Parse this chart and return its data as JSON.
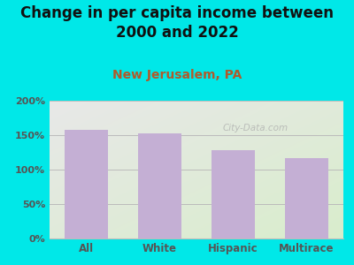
{
  "title": "Change in per capita income between\n2000 and 2022",
  "subtitle": "New Jerusalem, PA",
  "categories": [
    "All",
    "White",
    "Hispanic",
    "Multirace"
  ],
  "values": [
    158,
    152,
    128,
    117
  ],
  "bar_color": "#c4afd4",
  "title_fontsize": 12,
  "subtitle_fontsize": 10,
  "subtitle_color": "#b05a2a",
  "title_color": "#111111",
  "background_color": "#00e8e8",
  "plot_bg_topleft": "#e8e8e8",
  "plot_bg_bottomright": "#d8edcc",
  "ylim": [
    0,
    200
  ],
  "yticks": [
    0,
    50,
    100,
    150,
    200
  ],
  "ytick_labels": [
    "0%",
    "50%",
    "100%",
    "150%",
    "200%"
  ],
  "watermark": "City-Data.com",
  "tick_color": "#555555",
  "grid_color": "#bbbbbb",
  "watermark_color": "#aaaaaa"
}
